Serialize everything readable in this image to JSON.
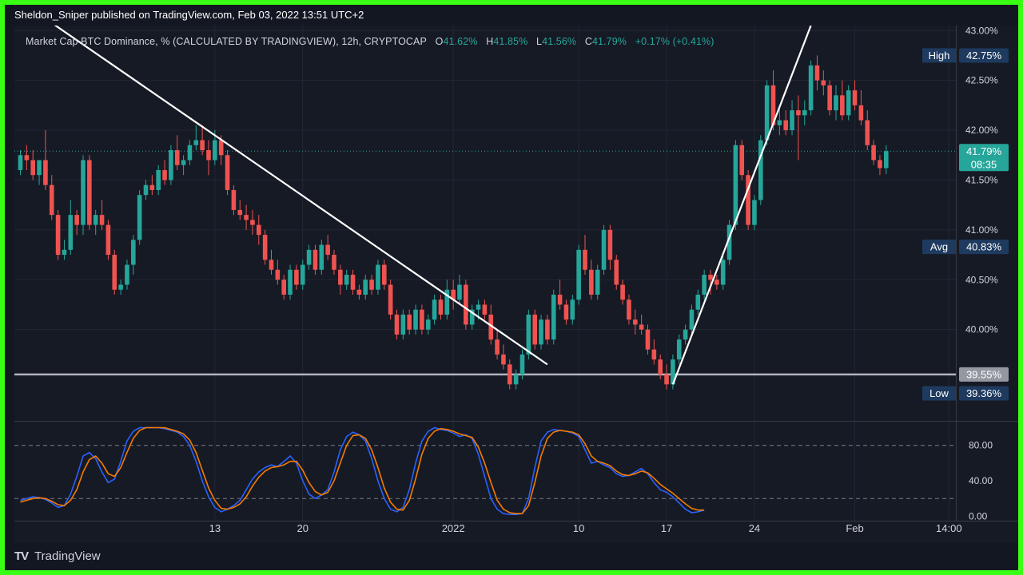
{
  "header": {
    "publisher_line": "Sheldon_Sniper published on TradingView.com, Feb 03, 2022 13:51 UTC+2"
  },
  "legend": {
    "symbol": "Market Cap BTC Dominance, % (CALCULATED BY TRADINGVIEW), 12h, CRYPTOCAP",
    "o_label": "O",
    "o_value": "41.62%",
    "h_label": "H",
    "h_value": "41.85%",
    "l_label": "L",
    "l_value": "41.56%",
    "c_label": "C",
    "c_value": "41.79%",
    "change": "+0.17% (+0.41%)"
  },
  "footer": {
    "logo": "TV",
    "brand": "TradingView"
  },
  "colors": {
    "up": "#26a69a",
    "down": "#ef5350",
    "stoch_k": "#2962ff",
    "stoch_d": "#f57c00",
    "trendline": "#ffffff",
    "level_line": "#b2b5be",
    "label_bg": "#1e3a5f",
    "border": "#39ff14"
  },
  "chart_data": {
    "type": "candlestick",
    "timeframe": "12h",
    "price_axis": {
      "ticks": [
        "43.00%",
        "42.50%",
        "42.00%",
        "41.50%",
        "41.00%",
        "40.50%",
        "40.00%"
      ],
      "ylim": [
        39.1,
        43.05
      ]
    },
    "time_axis": {
      "ticks": [
        "13",
        "20",
        "2022",
        "10",
        "17",
        "24",
        "Feb",
        "14:00"
      ],
      "tick_index": [
        31,
        45,
        69,
        89,
        103,
        117,
        133,
        148
      ]
    },
    "labels": {
      "high": {
        "name": "High",
        "value": "42.75%"
      },
      "last": {
        "value": "41.79%",
        "countdown": "08:35"
      },
      "avg": {
        "name": "Avg",
        "value": "40.83%"
      },
      "support": {
        "value": "39.55%"
      },
      "low": {
        "name": "Low",
        "value": "39.36%"
      }
    },
    "support_level": 39.55,
    "last_price": 41.79,
    "trendlines": [
      {
        "from": [
          1,
          43.25
        ],
        "to": [
          84,
          39.65
        ]
      },
      {
        "from": [
          104,
          39.45
        ],
        "to": [
          126,
          43.05
        ]
      }
    ],
    "candles": [
      [
        41.6,
        41.8,
        41.55,
        41.75
      ],
      [
        41.75,
        41.85,
        41.6,
        41.7
      ],
      [
        41.7,
        41.8,
        41.5,
        41.55
      ],
      [
        41.55,
        41.7,
        41.45,
        41.7
      ],
      [
        41.7,
        42.0,
        41.4,
        41.45
      ],
      [
        41.45,
        41.55,
        41.1,
        41.15
      ],
      [
        41.15,
        41.2,
        40.7,
        40.75
      ],
      [
        40.75,
        40.9,
        40.7,
        40.8
      ],
      [
        40.8,
        41.3,
        40.75,
        41.15
      ],
      [
        41.15,
        41.2,
        40.95,
        41.05
      ],
      [
        41.05,
        41.75,
        40.95,
        41.7
      ],
      [
        41.7,
        41.75,
        41.0,
        41.05
      ],
      [
        41.05,
        41.2,
        40.95,
        41.15
      ],
      [
        41.15,
        41.3,
        41.0,
        41.05
      ],
      [
        41.05,
        41.1,
        40.7,
        40.75
      ],
      [
        40.75,
        40.8,
        40.35,
        40.4
      ],
      [
        40.4,
        40.5,
        40.35,
        40.45
      ],
      [
        40.45,
        40.7,
        40.4,
        40.65
      ],
      [
        40.65,
        40.95,
        40.55,
        40.9
      ],
      [
        40.9,
        41.4,
        40.85,
        41.35
      ],
      [
        41.35,
        41.5,
        41.3,
        41.45
      ],
      [
        41.45,
        41.55,
        41.35,
        41.4
      ],
      [
        41.4,
        41.65,
        41.35,
        41.6
      ],
      [
        41.6,
        41.7,
        41.45,
        41.5
      ],
      [
        41.5,
        41.85,
        41.45,
        41.8
      ],
      [
        41.8,
        41.95,
        41.6,
        41.65
      ],
      [
        41.65,
        41.75,
        41.55,
        41.7
      ],
      [
        41.7,
        41.9,
        41.65,
        41.85
      ],
      [
        41.85,
        42.05,
        41.8,
        41.9
      ],
      [
        41.9,
        42.05,
        41.75,
        41.8
      ],
      [
        41.8,
        41.9,
        41.55,
        41.7
      ],
      [
        41.7,
        42.0,
        41.65,
        41.9
      ],
      [
        41.9,
        41.95,
        41.65,
        41.75
      ],
      [
        41.75,
        41.8,
        41.35,
        41.4
      ],
      [
        41.4,
        41.45,
        41.15,
        41.2
      ],
      [
        41.2,
        41.3,
        41.1,
        41.15
      ],
      [
        41.15,
        41.25,
        41.0,
        41.1
      ],
      [
        41.1,
        41.2,
        40.95,
        41.05
      ],
      [
        41.05,
        41.15,
        40.85,
        40.95
      ],
      [
        40.95,
        41.0,
        40.65,
        40.7
      ],
      [
        40.7,
        40.8,
        40.55,
        40.6
      ],
      [
        40.6,
        40.7,
        40.45,
        40.5
      ],
      [
        40.5,
        40.55,
        40.3,
        40.35
      ],
      [
        40.35,
        40.65,
        40.3,
        40.6
      ],
      [
        40.6,
        40.65,
        40.4,
        40.45
      ],
      [
        40.45,
        40.7,
        40.4,
        40.65
      ],
      [
        40.65,
        40.85,
        40.6,
        40.8
      ],
      [
        40.8,
        40.85,
        40.55,
        40.6
      ],
      [
        40.6,
        40.9,
        40.55,
        40.85
      ],
      [
        40.85,
        40.95,
        40.7,
        40.75
      ],
      [
        40.75,
        40.8,
        40.55,
        40.6
      ],
      [
        40.6,
        40.65,
        40.35,
        40.45
      ],
      [
        40.45,
        40.6,
        40.4,
        40.55
      ],
      [
        40.55,
        40.6,
        40.35,
        40.4
      ],
      [
        40.4,
        40.45,
        40.3,
        40.35
      ],
      [
        40.35,
        40.55,
        40.3,
        40.5
      ],
      [
        40.5,
        40.55,
        40.35,
        40.4
      ],
      [
        40.4,
        40.7,
        40.35,
        40.65
      ],
      [
        40.65,
        40.7,
        40.4,
        40.45
      ],
      [
        40.45,
        40.5,
        40.1,
        40.15
      ],
      [
        40.15,
        40.2,
        39.9,
        39.95
      ],
      [
        39.95,
        40.2,
        39.9,
        40.15
      ],
      [
        40.15,
        40.2,
        39.95,
        40.0
      ],
      [
        40.0,
        40.25,
        39.95,
        40.2
      ],
      [
        40.2,
        40.25,
        39.95,
        40.0
      ],
      [
        40.0,
        40.15,
        39.95,
        40.1
      ],
      [
        40.1,
        40.35,
        40.05,
        40.3
      ],
      [
        40.3,
        40.35,
        40.1,
        40.15
      ],
      [
        40.15,
        40.5,
        40.1,
        40.4
      ],
      [
        40.4,
        40.5,
        40.2,
        40.3
      ],
      [
        40.3,
        40.55,
        40.25,
        40.45
      ],
      [
        40.45,
        40.5,
        40.0,
        40.05
      ],
      [
        40.05,
        40.25,
        40.0,
        40.2
      ],
      [
        40.2,
        40.3,
        40.1,
        40.25
      ],
      [
        40.25,
        40.3,
        40.1,
        40.15
      ],
      [
        40.15,
        40.25,
        39.85,
        39.9
      ],
      [
        39.9,
        40.0,
        39.7,
        39.75
      ],
      [
        39.75,
        39.85,
        39.6,
        39.65
      ],
      [
        39.65,
        39.7,
        39.4,
        39.45
      ],
      [
        39.45,
        39.6,
        39.4,
        39.55
      ],
      [
        39.55,
        39.8,
        39.5,
        39.75
      ],
      [
        39.75,
        40.2,
        39.7,
        40.15
      ],
      [
        40.15,
        40.2,
        39.8,
        39.85
      ],
      [
        39.85,
        40.15,
        39.8,
        40.1
      ],
      [
        40.1,
        40.15,
        39.85,
        39.9
      ],
      [
        39.9,
        40.4,
        39.85,
        40.35
      ],
      [
        40.35,
        40.5,
        40.2,
        40.25
      ],
      [
        40.25,
        40.3,
        40.05,
        40.1
      ],
      [
        40.1,
        40.35,
        40.05,
        40.3
      ],
      [
        40.3,
        40.85,
        40.25,
        40.8
      ],
      [
        40.8,
        40.95,
        40.55,
        40.6
      ],
      [
        40.6,
        40.7,
        40.3,
        40.35
      ],
      [
        40.35,
        40.65,
        40.3,
        40.6
      ],
      [
        40.6,
        41.05,
        40.55,
        41.0
      ],
      [
        41.0,
        41.05,
        40.6,
        40.7
      ],
      [
        40.7,
        40.75,
        40.4,
        40.45
      ],
      [
        40.45,
        40.5,
        40.25,
        40.3
      ],
      [
        40.3,
        40.35,
        40.05,
        40.1
      ],
      [
        40.1,
        40.2,
        39.95,
        40.05
      ],
      [
        40.05,
        40.15,
        39.95,
        40.0
      ],
      [
        40.0,
        40.05,
        39.75,
        39.8
      ],
      [
        39.8,
        39.9,
        39.65,
        39.7
      ],
      [
        39.7,
        39.75,
        39.5,
        39.55
      ],
      [
        39.55,
        39.65,
        39.4,
        39.45
      ],
      [
        39.45,
        39.75,
        39.4,
        39.7
      ],
      [
        39.7,
        39.95,
        39.65,
        39.9
      ],
      [
        39.9,
        40.05,
        39.85,
        40.0
      ],
      [
        40.0,
        40.25,
        39.95,
        40.2
      ],
      [
        40.2,
        40.4,
        40.15,
        40.35
      ],
      [
        40.35,
        40.6,
        40.3,
        40.55
      ],
      [
        40.55,
        40.6,
        40.35,
        40.5
      ],
      [
        40.5,
        40.55,
        40.4,
        40.45
      ],
      [
        40.45,
        40.75,
        40.4,
        40.7
      ],
      [
        40.7,
        41.1,
        40.65,
        41.05
      ],
      [
        41.05,
        41.9,
        41.0,
        41.85
      ],
      [
        41.85,
        41.9,
        41.5,
        41.55
      ],
      [
        41.55,
        41.6,
        41.0,
        41.05
      ],
      [
        41.05,
        41.35,
        41.0,
        41.3
      ],
      [
        41.3,
        41.95,
        41.25,
        41.9
      ],
      [
        41.9,
        42.5,
        41.85,
        42.45
      ],
      [
        42.45,
        42.6,
        42.0,
        42.05
      ],
      [
        42.05,
        42.25,
        41.95,
        42.1
      ],
      [
        42.1,
        42.2,
        41.95,
        42.0
      ],
      [
        42.0,
        42.3,
        41.95,
        42.2
      ],
      [
        42.2,
        42.35,
        41.7,
        42.15
      ],
      [
        42.15,
        42.3,
        42.05,
        42.2
      ],
      [
        42.2,
        42.7,
        42.15,
        42.65
      ],
      [
        42.65,
        42.75,
        42.4,
        42.5
      ],
      [
        42.5,
        42.6,
        42.35,
        42.45
      ],
      [
        42.45,
        42.5,
        42.15,
        42.2
      ],
      [
        42.2,
        42.45,
        42.1,
        42.35
      ],
      [
        42.35,
        42.5,
        42.1,
        42.15
      ],
      [
        42.15,
        42.45,
        42.1,
        42.4
      ],
      [
        42.4,
        42.5,
        42.2,
        42.25
      ],
      [
        42.25,
        42.4,
        42.05,
        42.1
      ],
      [
        42.1,
        42.2,
        41.8,
        41.85
      ],
      [
        41.85,
        41.9,
        41.65,
        41.7
      ],
      [
        41.7,
        41.75,
        41.55,
        41.62
      ],
      [
        41.62,
        41.85,
        41.56,
        41.79
      ]
    ],
    "oscillator": {
      "type": "stochastic",
      "ticks": [
        "80.00",
        "40.00",
        "0.00"
      ],
      "bands": [
        80,
        20
      ],
      "ylim": [
        -5,
        105
      ],
      "k": [
        18,
        20,
        22,
        21,
        19,
        15,
        10,
        12,
        25,
        45,
        68,
        72,
        65,
        50,
        38,
        42,
        62,
        85,
        96,
        100,
        100,
        100,
        100,
        99,
        97,
        95,
        90,
        80,
        62,
        40,
        22,
        10,
        5,
        8,
        12,
        18,
        30,
        42,
        50,
        55,
        58,
        56,
        62,
        68,
        60,
        40,
        25,
        20,
        24,
        30,
        50,
        75,
        90,
        95,
        92,
        85,
        65,
        40,
        20,
        8,
        5,
        10,
        30,
        60,
        85,
        96,
        100,
        98,
        97,
        94,
        90,
        92,
        88,
        70,
        45,
        20,
        8,
        3,
        2,
        2,
        3,
        20,
        55,
        85,
        95,
        98,
        97,
        96,
        94,
        90,
        75,
        60,
        62,
        58,
        55,
        48,
        45,
        46,
        50,
        54,
        48,
        38,
        30,
        27,
        22,
        15,
        8,
        4,
        5,
        7
      ],
      "d": [
        16,
        18,
        20,
        21,
        20,
        17,
        13,
        12,
        18,
        30,
        50,
        64,
        68,
        60,
        48,
        45,
        55,
        72,
        88,
        97,
        100,
        100,
        100,
        100,
        98,
        96,
        93,
        86,
        72,
        52,
        32,
        18,
        9,
        8,
        10,
        14,
        22,
        34,
        44,
        51,
        55,
        56,
        58,
        62,
        62,
        52,
        38,
        28,
        24,
        27,
        40,
        60,
        80,
        91,
        92,
        88,
        75,
        55,
        32,
        16,
        8,
        7,
        18,
        42,
        70,
        88,
        96,
        99,
        98,
        96,
        93,
        91,
        89,
        78,
        60,
        38,
        18,
        8,
        4,
        3,
        3,
        12,
        38,
        68,
        88,
        95,
        97,
        96,
        95,
        92,
        82,
        68,
        62,
        60,
        57,
        51,
        47,
        46,
        48,
        51,
        49,
        43,
        36,
        31,
        26,
        20,
        14,
        9,
        7,
        7
      ]
    }
  }
}
